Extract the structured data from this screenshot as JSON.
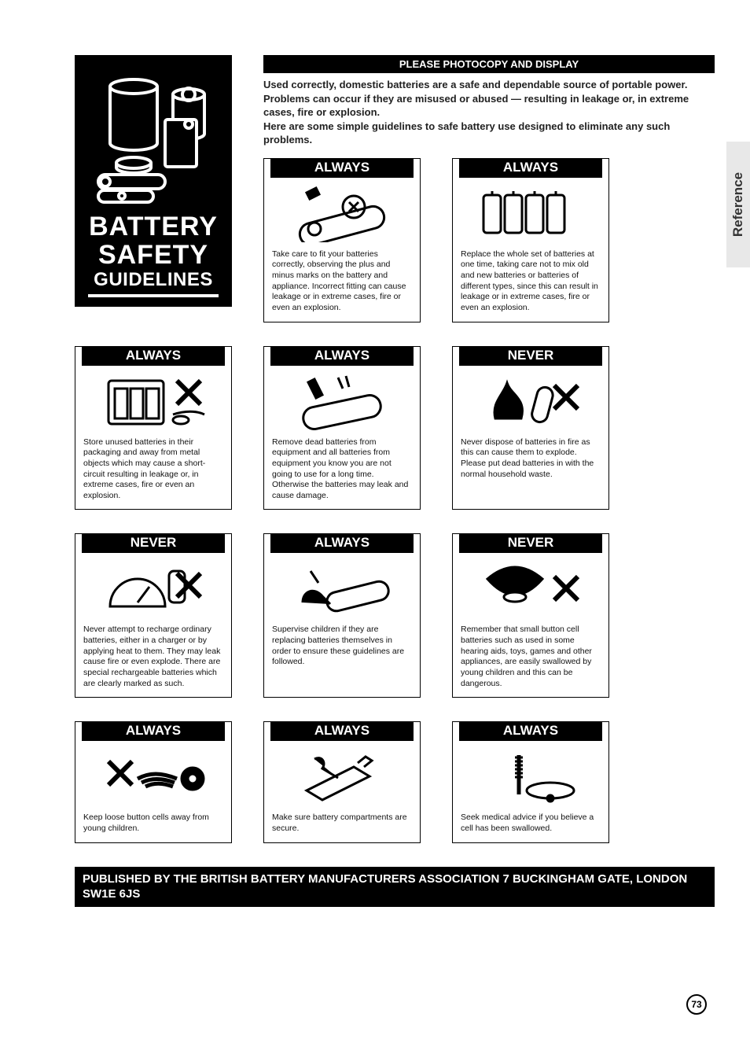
{
  "sideTab": "Reference",
  "pageNumber": "73",
  "logo": {
    "line1": "BATTERY",
    "line2": "SAFETY",
    "line3": "GUIDELINES"
  },
  "banner": "PLEASE PHOTOCOPY AND DISPLAY",
  "intro": "Used correctly, domestic batteries are a safe and dependable source of portable power. Problems can occur if they are misused or abused — resulting in leakage or, in extreme cases, fire or explosion.\nHere are some simple guidelines to safe battery use designed to eliminate any such problems.",
  "cards": [
    {
      "head": "ALWAYS",
      "icon": "insert",
      "text": "Take care to fit your batteries correctly, observing the plus and minus marks on the battery and appliance. Incorrect fitting can cause leakage or in extreme cases, fire or even an explosion."
    },
    {
      "head": "ALWAYS",
      "icon": "replace",
      "text": "Replace the whole set of batteries at one time, taking care not to mix old and new batteries or batteries of different types, since this can result in leakage or in extreme cases, fire or even an explosion."
    },
    {
      "head": "ALWAYS",
      "icon": "package",
      "text": "Store unused batteries in their packaging and away from metal objects which may cause a short-circuit resulting in leakage or, in extreme cases, fire or even an explosion."
    },
    {
      "head": "ALWAYS",
      "icon": "remove",
      "text": "Remove dead batteries from equipment and all batteries from equipment you know you are not going to use for a long time. Otherwise the batteries may leak and cause damage."
    },
    {
      "head": "NEVER",
      "icon": "fire",
      "text": "Never dispose of batteries in fire as this can cause them to explode. Please put dead batteries in with the normal household waste."
    },
    {
      "head": "NEVER",
      "icon": "recharge",
      "text": "Never attempt to recharge ordinary batteries, either in a charger or by applying heat to them. They may leak cause fire or even explode. There are special rechargeable batteries which are clearly marked as such."
    },
    {
      "head": "ALWAYS",
      "icon": "supervise",
      "text": "Supervise children if they are replacing batteries themselves in order to ensure these guidelines are followed."
    },
    {
      "head": "NEVER",
      "icon": "swallow",
      "text": "Remember that small button cell batteries such as used in some hearing aids, toys, games and other appliances, are easily swallowed by young children and this can be dangerous."
    },
    {
      "head": "ALWAYS",
      "icon": "keepaway",
      "text": "Keep loose button cells away from young children."
    },
    {
      "head": "ALWAYS",
      "icon": "secure",
      "text": "Make sure battery compartments are secure."
    },
    {
      "head": "ALWAYS",
      "icon": "medical",
      "text": "Seek medical advice if you believe a cell has been swallowed."
    }
  ],
  "footer": "PUBLISHED BY THE BRITISH BATTERY MANUFACTURERS ASSOCIATION 7 BUCKINGHAM GATE, LONDON SW1E 6JS",
  "colors": {
    "black": "#000000",
    "white": "#ffffff",
    "tab": "#e8e8e8"
  },
  "layout": {
    "pageWidth": 954,
    "pageHeight": 1340,
    "cardWidth": 200,
    "gap": 40,
    "columns": 3
  }
}
